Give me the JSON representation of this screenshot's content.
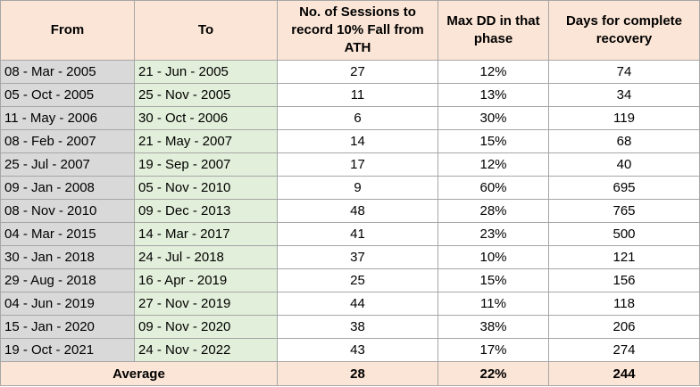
{
  "headers": {
    "from": "From",
    "to": "To",
    "sessions": "No. of Sessions to record 10% Fall from ATH",
    "maxdd": "Max DD in that phase",
    "days": "Days for complete recovery"
  },
  "rows": [
    {
      "from": "08 - Mar - 2005",
      "to": "21 - Jun - 2005",
      "sessions": "27",
      "maxdd": "12%",
      "days": "74"
    },
    {
      "from": "05 - Oct - 2005",
      "to": "25 - Nov - 2005",
      "sessions": "11",
      "maxdd": "13%",
      "days": "34"
    },
    {
      "from": "11 - May - 2006",
      "to": "30 - Oct - 2006",
      "sessions": "6",
      "maxdd": "30%",
      "days": "119"
    },
    {
      "from": "08 - Feb - 2007",
      "to": "21 - May - 2007",
      "sessions": "14",
      "maxdd": "15%",
      "days": "68"
    },
    {
      "from": "25 - Jul - 2007",
      "to": "19 - Sep - 2007",
      "sessions": "17",
      "maxdd": "12%",
      "days": "40"
    },
    {
      "from": "09 - Jan - 2008",
      "to": "05 - Nov - 2010",
      "sessions": "9",
      "maxdd": "60%",
      "days": "695"
    },
    {
      "from": "08 - Nov - 2010",
      "to": "09 - Dec - 2013",
      "sessions": "48",
      "maxdd": "28%",
      "days": "765"
    },
    {
      "from": "04 - Mar - 2015",
      "to": "14 - Mar - 2017",
      "sessions": "41",
      "maxdd": "23%",
      "days": "500"
    },
    {
      "from": "30 - Jan - 2018",
      "to": "24 - Jul - 2018",
      "sessions": "37",
      "maxdd": "10%",
      "days": "121"
    },
    {
      "from": "29 - Aug - 2018",
      "to": "16 - Apr - 2019",
      "sessions": "25",
      "maxdd": "15%",
      "days": "156"
    },
    {
      "from": "04 - Jun - 2019",
      "to": "27 - Nov - 2019",
      "sessions": "44",
      "maxdd": "11%",
      "days": "118"
    },
    {
      "from": "15 - Jan - 2020",
      "to": "09 - Nov - 2020",
      "sessions": "38",
      "maxdd": "38%",
      "days": "206"
    },
    {
      "from": "19 - Oct - 2021",
      "to": "24 - Nov - 2022",
      "sessions": "43",
      "maxdd": "17%",
      "days": "274"
    }
  ],
  "footer": {
    "label": "Average",
    "sessions": "28",
    "maxdd": "22%",
    "days": "244"
  },
  "colors": {
    "header_bg": "#fbe5d6",
    "from_bg": "#d9d9d9",
    "to_bg": "#e2efda",
    "border": "#a6a6a6"
  }
}
